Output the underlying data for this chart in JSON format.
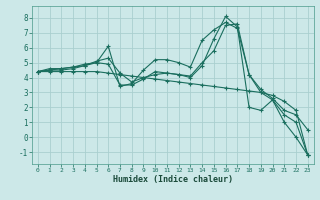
{
  "bg_color": "#cce8e8",
  "grid_color": "#aacfcf",
  "line_color": "#1a6e5e",
  "xlabel": "Humidex (Indice chaleur)",
  "ylim": [
    -1.8,
    8.8
  ],
  "xlim": [
    -0.5,
    23.5
  ],
  "yticks": [
    -1,
    0,
    1,
    2,
    3,
    4,
    5,
    6,
    7,
    8
  ],
  "xticks": [
    0,
    1,
    2,
    3,
    4,
    5,
    6,
    7,
    8,
    9,
    10,
    11,
    12,
    13,
    14,
    15,
    16,
    17,
    18,
    19,
    20,
    21,
    22,
    23
  ],
  "series": [
    {
      "x": [
        0,
        1,
        2,
        3,
        4,
        5,
        6,
        7,
        8,
        9,
        10,
        11,
        12,
        13,
        14,
        15,
        16,
        17,
        18,
        19,
        20,
        21,
        22,
        23
      ],
      "y": [
        4.4,
        4.6,
        4.6,
        4.7,
        4.9,
        5.0,
        6.1,
        3.4,
        3.6,
        4.5,
        5.2,
        5.2,
        5.0,
        4.7,
        6.5,
        7.2,
        7.7,
        7.3,
        4.2,
        3.0,
        2.5,
        1.0,
        0.0,
        -1.2
      ]
    },
    {
      "x": [
        0,
        1,
        2,
        3,
        4,
        5,
        6,
        7,
        8,
        9,
        10,
        11,
        12,
        13,
        14,
        15,
        16,
        17,
        18,
        19,
        20,
        21,
        22,
        23
      ],
      "y": [
        4.4,
        4.5,
        4.5,
        4.6,
        4.8,
        5.1,
        5.3,
        4.3,
        3.7,
        4.0,
        4.2,
        4.3,
        4.2,
        4.1,
        5.0,
        5.8,
        7.5,
        7.6,
        4.2,
        3.2,
        2.6,
        1.8,
        1.5,
        0.5
      ]
    },
    {
      "x": [
        0,
        1,
        2,
        3,
        4,
        5,
        6,
        7,
        8,
        9,
        10,
        11,
        12,
        13,
        14,
        15,
        16,
        17,
        18,
        19,
        20,
        21,
        22,
        23
      ],
      "y": [
        4.4,
        4.4,
        4.4,
        4.4,
        4.4,
        4.4,
        4.3,
        4.2,
        4.1,
        4.0,
        3.9,
        3.8,
        3.7,
        3.6,
        3.5,
        3.4,
        3.3,
        3.2,
        3.1,
        3.0,
        2.8,
        2.4,
        1.8,
        -1.2
      ]
    },
    {
      "x": [
        0,
        1,
        2,
        3,
        4,
        5,
        6,
        7,
        8,
        9,
        10,
        11,
        12,
        13,
        14,
        15,
        16,
        17,
        18,
        19,
        20,
        21,
        22,
        23
      ],
      "y": [
        4.4,
        4.5,
        4.6,
        4.7,
        4.8,
        5.0,
        4.9,
        3.5,
        3.5,
        3.9,
        4.4,
        4.3,
        4.2,
        4.0,
        4.8,
        6.6,
        8.1,
        7.4,
        2.0,
        1.8,
        2.5,
        1.5,
        1.0,
        -1.2
      ]
    }
  ]
}
